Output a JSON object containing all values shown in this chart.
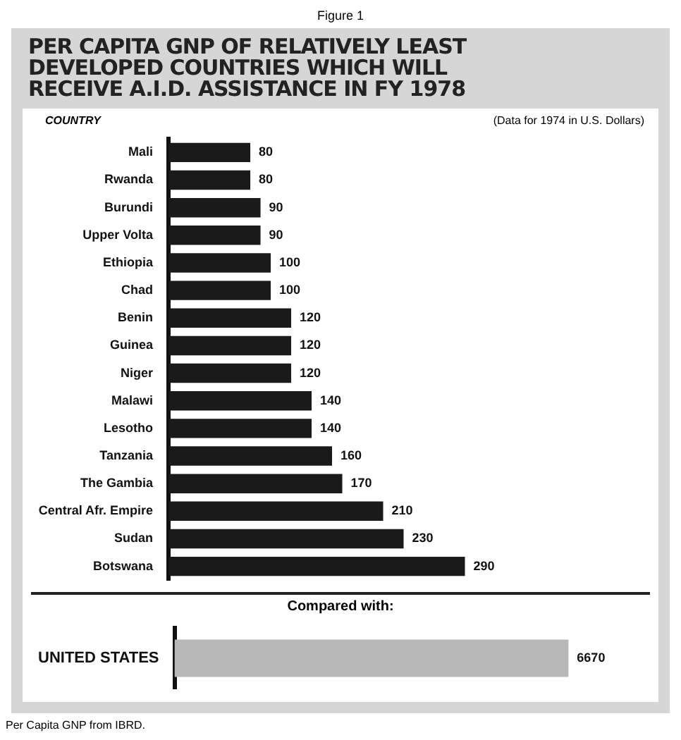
{
  "chart_data": [
    {
      "type": "bar",
      "orientation": "horizontal",
      "title": "PER CAPITA GNP OF RELATIVELY LEAST DEVELOPED COUNTRIES WHICH WILL RECEIVE A.I.D. ASSISTANCE IN FY 1978",
      "ylabel": "COUNTRY",
      "annotations": [
        "Figure 1",
        "(Data for 1974 in U.S. Dollars)"
      ],
      "categories": [
        "Mali",
        "Rwanda",
        "Burundi",
        "Upper Volta",
        "Ethiopia",
        "Chad",
        "Benin",
        "Guinea",
        "Niger",
        "Malawi",
        "Lesotho",
        "Tanzania",
        "The Gambia",
        "Central Afr. Empire",
        "Sudan",
        "Botswana"
      ],
      "values": [
        80,
        80,
        90,
        90,
        100,
        100,
        120,
        120,
        120,
        140,
        140,
        160,
        170,
        210,
        230,
        290
      ],
      "color": "#1a1a1a",
      "data_labels": true,
      "tick_labels": "y",
      "grid": false,
      "legend": false
    },
    {
      "type": "bar",
      "orientation": "horizontal",
      "title": "Compared with:",
      "annotations": [
        "Per Capita GNP from IBRD."
      ],
      "categories": [
        "UNITED STATES"
      ],
      "values": [
        6670
      ],
      "color": "#b8b8b8",
      "data_labels": true,
      "tick_labels": "y",
      "grid": false,
      "legend": false
    }
  ]
}
